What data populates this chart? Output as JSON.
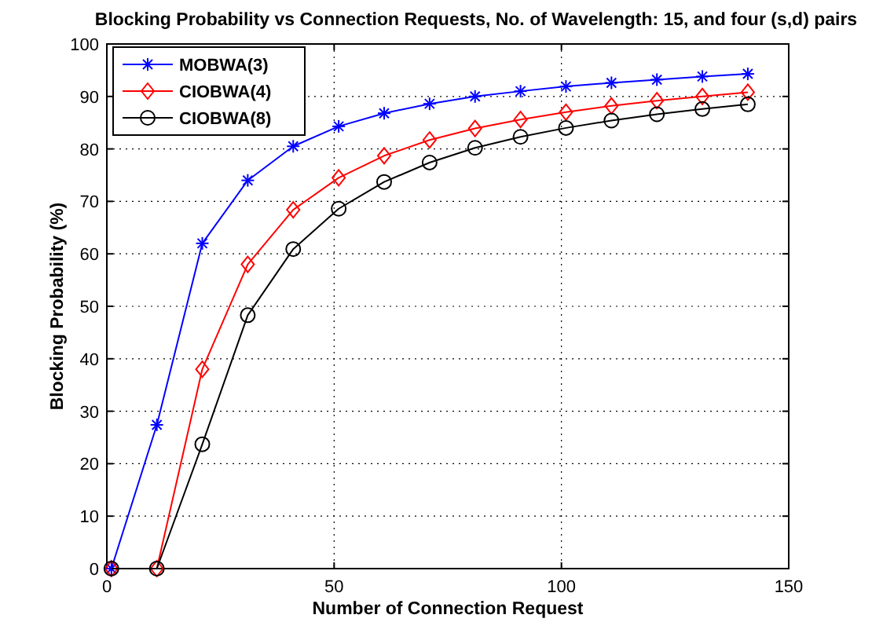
{
  "chart_data": {
    "type": "line",
    "title": "Blocking Probability vs Connection Requests, No. of Wavelength: 15, and four (s,d) pairs",
    "xlabel": "Number of Connection Request",
    "ylabel": "Blocking Probability (%)",
    "x": [
      1,
      11,
      21,
      31,
      41,
      51,
      61,
      71,
      81,
      91,
      101,
      111,
      121,
      131,
      141
    ],
    "series": [
      {
        "name": "MOBWA(3)",
        "color": "#0000ff",
        "marker": "cross",
        "values": [
          0,
          27.4,
          62,
          74,
          80.5,
          84.3,
          86.8,
          88.6,
          90,
          91,
          91.9,
          92.6,
          93.2,
          93.8,
          94.3
        ]
      },
      {
        "name": "CIOBWA(4)",
        "color": "#ff0000",
        "marker": "diamond",
        "values": [
          0,
          0,
          38,
          58,
          68.4,
          74.5,
          78.7,
          81.7,
          83.9,
          85.6,
          87,
          88.2,
          89.2,
          90,
          90.8
        ]
      },
      {
        "name": "CIOBWA(8)",
        "color": "#000000",
        "marker": "circle",
        "values": [
          0,
          0,
          23.7,
          48.3,
          60.9,
          68.6,
          73.7,
          77.4,
          80.2,
          82.3,
          84,
          85.4,
          86.6,
          87.6,
          88.5
        ]
      }
    ],
    "xlim": [
      0,
      150
    ],
    "xticks": [
      0,
      50,
      100,
      150
    ],
    "ylim": [
      0,
      100
    ],
    "yticks": [
      0,
      10,
      20,
      30,
      40,
      50,
      60,
      70,
      80,
      90,
      100
    ],
    "grid": true,
    "legend": "top left",
    "line_style": "solid"
  }
}
